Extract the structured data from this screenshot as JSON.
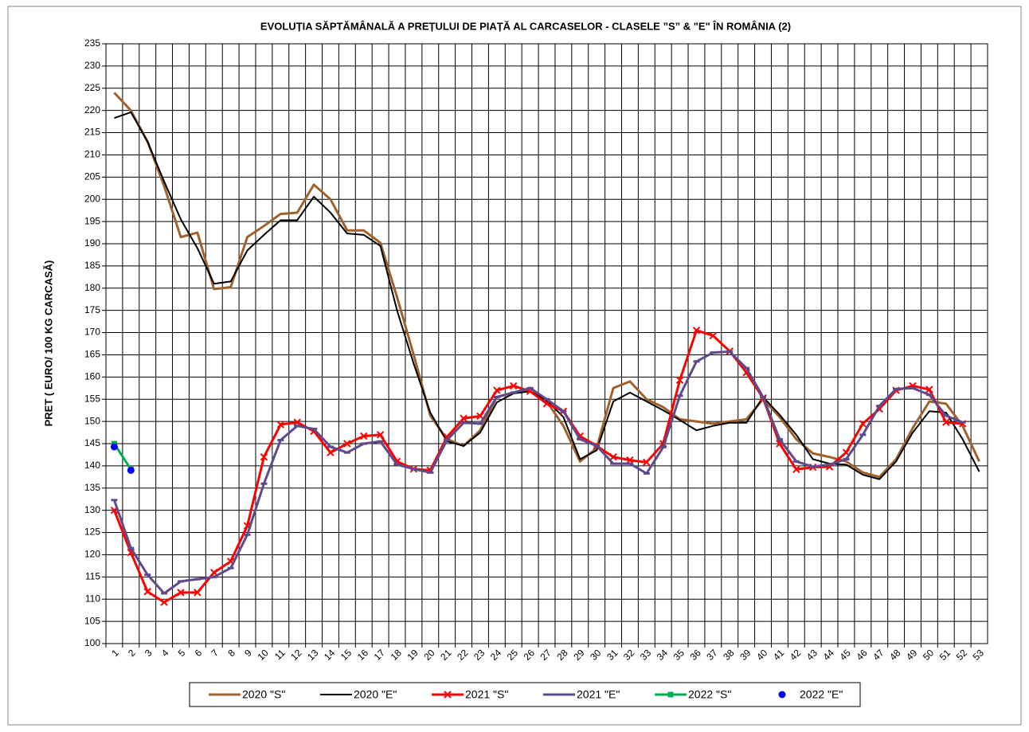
{
  "chart_data": {
    "type": "line",
    "title": "EVOLUȚIA SĂPTĂMÂNALĂ A PREȚULUI  DE PIAȚĂ  AL CARCASELOR  - CLASELE ”S” & \"E\"  ÎN ROMÂNIA  (2)",
    "y_label": "PRET ( EURO/ 100 KG CARCASĂ)",
    "categories": [
      "1",
      "2",
      "3",
      "4",
      "5",
      "6",
      "7",
      "8",
      "9",
      "10",
      "11",
      "12",
      "13",
      "14",
      "15",
      "16",
      "17",
      "18",
      "19",
      "20",
      "21",
      "22",
      "23",
      "24",
      "25",
      "26",
      "27",
      "28",
      "29",
      "30",
      "31",
      "32",
      "33",
      "34",
      "35",
      "36",
      "37",
      "38",
      "39",
      "40",
      "41",
      "42",
      "43",
      "44",
      "45",
      "46",
      "47",
      "48",
      "49",
      "50",
      "51",
      "52",
      "53"
    ],
    "ylim": [
      100,
      235
    ],
    "yticks": [
      100,
      105,
      110,
      115,
      120,
      125,
      130,
      135,
      140,
      145,
      150,
      155,
      160,
      165,
      170,
      175,
      180,
      185,
      190,
      195,
      200,
      205,
      210,
      215,
      220,
      225,
      230,
      235
    ],
    "grid": true,
    "legend": "bottom",
    "series": [
      {
        "name": "2020 \"S\"",
        "color": "#a0622d",
        "marker": "none",
        "line": true,
        "values": [
          224,
          220,
          213,
          203,
          191.5,
          192.5,
          179.8,
          180.2,
          191.5,
          194,
          196.7,
          197,
          203.3,
          200,
          193,
          193,
          190.2,
          178,
          165,
          151.3,
          146,
          144.5,
          148,
          155.5,
          156.5,
          156.8,
          154.5,
          149,
          141,
          144,
          157.5,
          159,
          155,
          153.2,
          150.5,
          150,
          149.5,
          150,
          150.5,
          155,
          151,
          146,
          142.8,
          142,
          141,
          138.5,
          137.5,
          141.5,
          148.5,
          154.5,
          154,
          149,
          141
        ]
      },
      {
        "name": "2020 \"E\"",
        "color": "#000000",
        "marker": "none",
        "line": true,
        "values": [
          218.3,
          219.6,
          213,
          204,
          195.5,
          189,
          181,
          181.5,
          188.5,
          192,
          195.3,
          195.3,
          200.6,
          197,
          192.3,
          192,
          189.5,
          175,
          163,
          152,
          145.5,
          144.5,
          147.5,
          154.3,
          156.3,
          156.8,
          154.7,
          151,
          141.5,
          143.5,
          154.5,
          156.5,
          154.5,
          152.5,
          150.3,
          148,
          149,
          149.7,
          149.7,
          155.5,
          151.5,
          147,
          141.5,
          140.5,
          140.3,
          138,
          137,
          141,
          147.5,
          152.3,
          152,
          146,
          138.7
        ]
      },
      {
        "name": "2021 \"S\"",
        "color": "#ff0000",
        "marker": "x",
        "line": true,
        "values": [
          130,
          120.5,
          111.7,
          109.3,
          111.5,
          111.5,
          116,
          118.5,
          126.5,
          142,
          149.3,
          149.8,
          147.8,
          143,
          145,
          146.7,
          147,
          141,
          139.3,
          139,
          146.5,
          150.7,
          151.2,
          157,
          158,
          156.8,
          154,
          152.3,
          146.7,
          144.5,
          142,
          141.3,
          140.8,
          145,
          159.3,
          170.5,
          169.3,
          165.8,
          161,
          155.3,
          145,
          139.2,
          139.7,
          139.8,
          143,
          149.5,
          152.8,
          157,
          158,
          157.2,
          149.8,
          149.5,
          null
        ]
      },
      {
        "name": "2021 \"E\"",
        "color": "#5f4b8b",
        "marker": "dash",
        "line": true,
        "values": [
          132.3,
          121.5,
          115.5,
          111.3,
          114,
          114.5,
          115,
          117,
          124.5,
          136,
          145.8,
          149,
          148.3,
          144.3,
          143,
          145,
          145.5,
          140.3,
          139.3,
          138.5,
          145.8,
          149.7,
          149.5,
          155.5,
          156.5,
          157.5,
          155,
          152.3,
          146,
          144.5,
          140.5,
          140.5,
          138.3,
          144.2,
          155.8,
          163.5,
          165.5,
          165.7,
          162,
          155.5,
          146,
          141,
          139.8,
          140.3,
          141.5,
          147,
          153.5,
          157.3,
          157.5,
          156,
          151.3,
          149.8,
          null
        ]
      },
      {
        "name": "2022 \"S\"",
        "color": "#00b050",
        "marker": "square",
        "line": true,
        "values": [
          145,
          139.2,
          null,
          null,
          null,
          null,
          null,
          null,
          null,
          null,
          null,
          null,
          null,
          null,
          null,
          null,
          null,
          null,
          null,
          null,
          null,
          null,
          null,
          null,
          null,
          null,
          null,
          null,
          null,
          null,
          null,
          null,
          null,
          null,
          null,
          null,
          null,
          null,
          null,
          null,
          null,
          null,
          null,
          null,
          null,
          null,
          null,
          null,
          null,
          null,
          null,
          null,
          null
        ]
      },
      {
        "name": "2022 \"E\"",
        "color": "#0000ff",
        "marker": "circle",
        "line": false,
        "values": [
          144.3,
          139,
          null,
          null,
          null,
          null,
          null,
          null,
          null,
          null,
          null,
          null,
          null,
          null,
          null,
          null,
          null,
          null,
          null,
          null,
          null,
          null,
          null,
          null,
          null,
          null,
          null,
          null,
          null,
          null,
          null,
          null,
          null,
          null,
          null,
          null,
          null,
          null,
          null,
          null,
          null,
          null,
          null,
          null,
          null,
          null,
          null,
          null,
          null,
          null,
          null,
          null,
          null
        ]
      }
    ]
  }
}
